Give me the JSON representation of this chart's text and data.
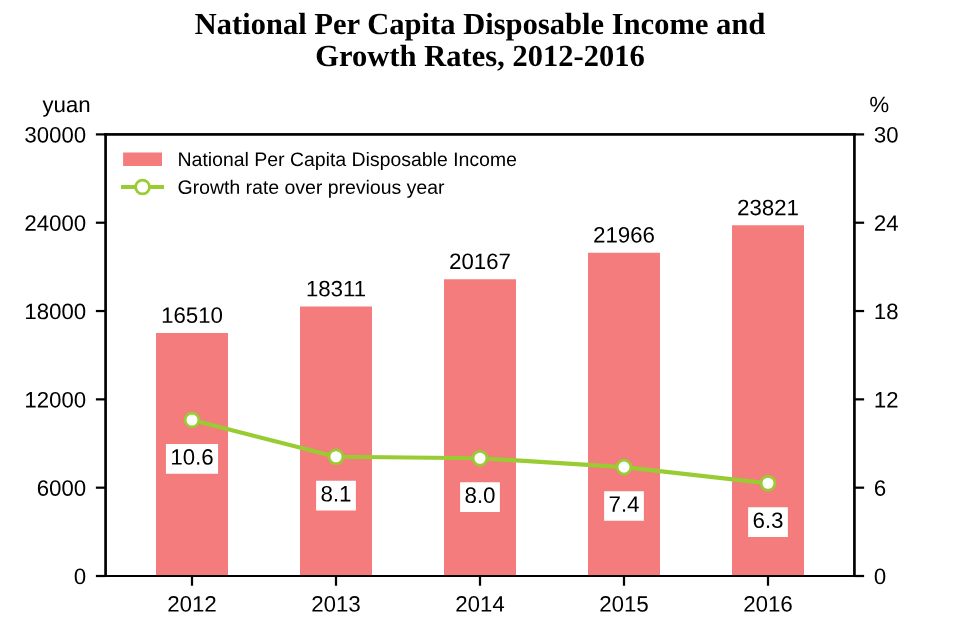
{
  "chart_data": {
    "type": "bar",
    "title": "National Per Capita Disposable Income and\nGrowth Rates, 2012-2016",
    "categories": [
      "2012",
      "2013",
      "2014",
      "2015",
      "2016"
    ],
    "series": [
      {
        "name": "National Per Capita Disposable Income",
        "color": "#f47c7c",
        "values": [
          16510,
          18311,
          20167,
          21966,
          23821
        ]
      },
      {
        "name": "Growth rate over previous year",
        "type": "line",
        "axis": "y2",
        "color": "#99cc33",
        "marker": "circle",
        "values": [
          10.6,
          8.1,
          8.0,
          7.4,
          6.3
        ],
        "value_labels": [
          "10.6",
          "8.1",
          "8.0",
          "7.4",
          "6.3"
        ]
      }
    ],
    "ylabel": "yuan",
    "y2label": "%",
    "ylim": [
      0,
      30000
    ],
    "yticks": [
      0,
      6000,
      12000,
      18000,
      24000,
      30000
    ],
    "y2lim": [
      0,
      30
    ],
    "y2ticks": [
      0,
      6,
      12,
      18,
      24,
      30
    ],
    "data_labels": true,
    "legend": "top left",
    "grid": false
  }
}
